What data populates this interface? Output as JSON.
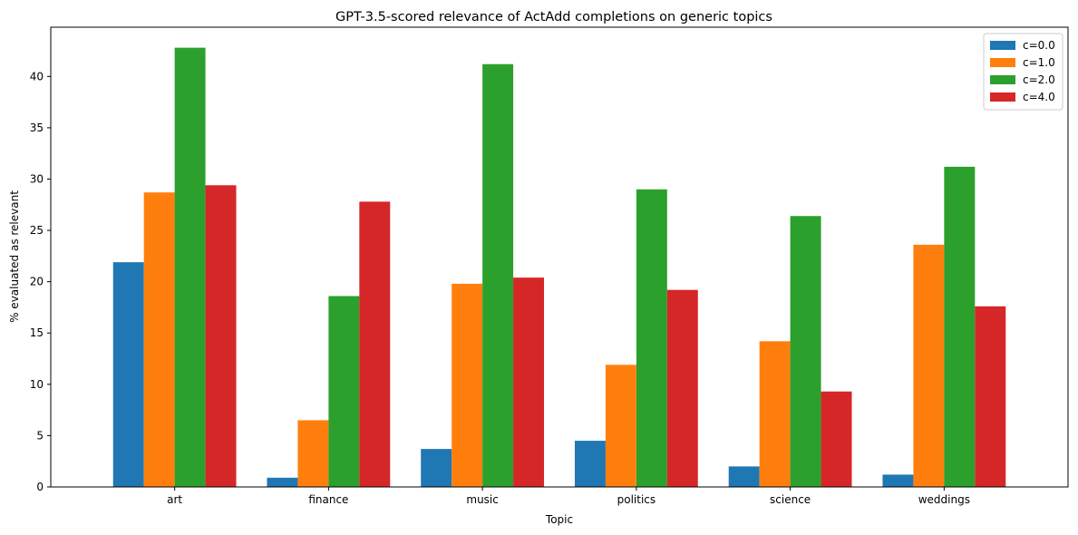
{
  "chart_data": {
    "type": "bar",
    "title": "GPT-3.5-scored relevance of ActAdd completions on generic topics",
    "xlabel": "Topic",
    "ylabel": "% evaluated as relevant",
    "categories": [
      "art",
      "finance",
      "music",
      "politics",
      "science",
      "weddings"
    ],
    "ylim": [
      0,
      44.8
    ],
    "yticks": [
      0,
      5,
      10,
      15,
      20,
      25,
      30,
      35,
      40
    ],
    "grid": false,
    "legend_position": "top-right",
    "series": [
      {
        "name": "c=0.0",
        "color": "#1f77b4",
        "values": [
          21.9,
          0.9,
          3.7,
          4.5,
          2.0,
          1.2
        ]
      },
      {
        "name": "c=1.0",
        "color": "#ff7f0e",
        "values": [
          28.7,
          6.5,
          19.8,
          11.9,
          14.2,
          23.6
        ]
      },
      {
        "name": "c=2.0",
        "color": "#2ca02c",
        "values": [
          42.8,
          18.6,
          41.2,
          29.0,
          26.4,
          31.2
        ]
      },
      {
        "name": "c=4.0",
        "color": "#d62728",
        "values": [
          29.4,
          27.8,
          20.4,
          19.2,
          9.3,
          17.6
        ]
      }
    ]
  }
}
